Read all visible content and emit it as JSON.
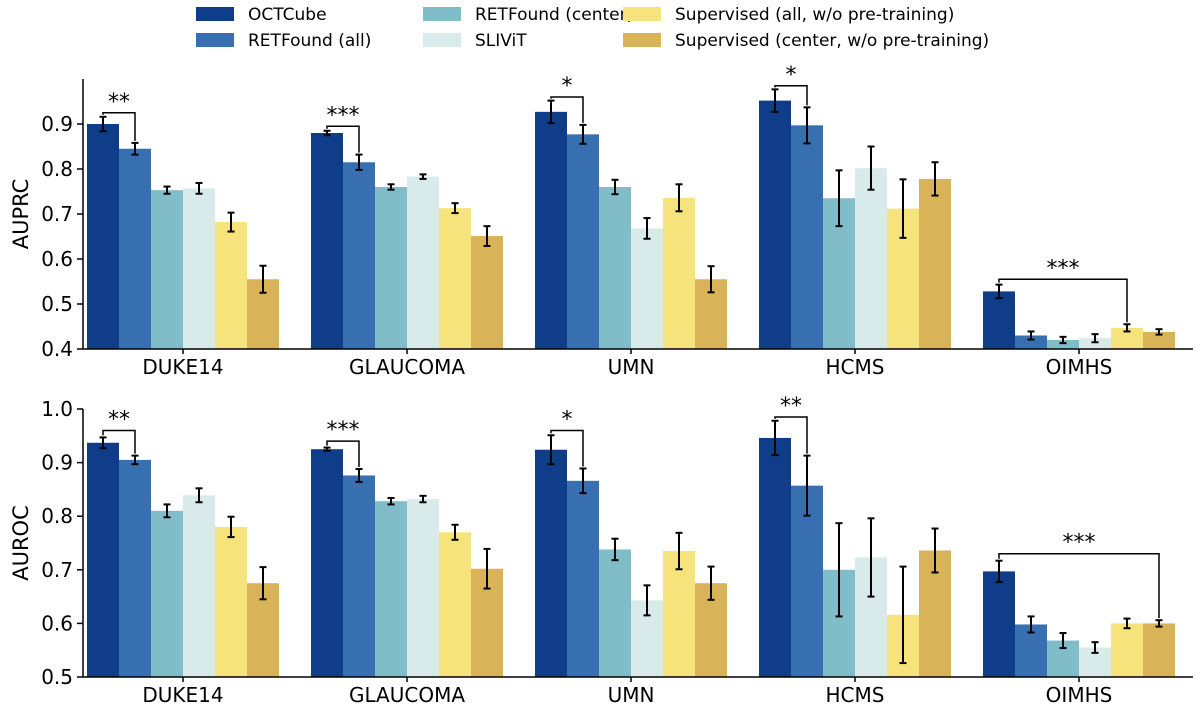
{
  "legend": [
    {
      "name": "OCTCube",
      "color": "#0f3d8a"
    },
    {
      "name": "RETFound (all)",
      "color": "#376fb0"
    },
    {
      "name": "RETFound (center)",
      "color": "#80bdc8"
    },
    {
      "name": "SLIViT",
      "color": "#d8ebea"
    },
    {
      "name": "Supervised (all, w/o pre-training)",
      "color": "#f7e37b"
    },
    {
      "name": "Supervised (center, w/o pre-training)",
      "color": "#d8b357"
    }
  ],
  "chart_data": [
    {
      "type": "bar",
      "categories": [
        "DUKE14",
        "GLAUCOMA",
        "UMN",
        "HCMS",
        "OIMHS"
      ],
      "ylabel": "AUPRC",
      "ylim": [
        0.4,
        1.0
      ],
      "yticks": [
        "0.4",
        "0.5",
        "0.6",
        "0.7",
        "0.8",
        "0.9"
      ],
      "series": [
        {
          "name": "OCTCube",
          "values": [
            0.9,
            0.88,
            0.927,
            0.952,
            0.528
          ],
          "err": [
            0.016,
            0.005,
            0.025,
            0.025,
            0.015
          ]
        },
        {
          "name": "RETFound (all)",
          "values": [
            0.845,
            0.815,
            0.877,
            0.897,
            0.43
          ],
          "err": [
            0.013,
            0.017,
            0.021,
            0.04,
            0.009
          ]
        },
        {
          "name": "RETFound (center)",
          "values": [
            0.753,
            0.76,
            0.76,
            0.735,
            0.42
          ],
          "err": [
            0.008,
            0.006,
            0.016,
            0.062,
            0.007
          ]
        },
        {
          "name": "SLIViT",
          "values": [
            0.757,
            0.783,
            0.668,
            0.802,
            0.424
          ],
          "err": [
            0.012,
            0.005,
            0.023,
            0.048,
            0.009
          ]
        },
        {
          "name": "Supervised (all, w/o pre-training)",
          "values": [
            0.682,
            0.713,
            0.736,
            0.712,
            0.447
          ],
          "err": [
            0.021,
            0.011,
            0.03,
            0.065,
            0.008
          ]
        },
        {
          "name": "Supervised (center, w/o pre-training)",
          "values": [
            0.555,
            0.651,
            0.555,
            0.778,
            0.438
          ],
          "err": [
            0.03,
            0.022,
            0.029,
            0.037,
            0.006
          ]
        }
      ],
      "significance": [
        {
          "category": 0,
          "from": 0,
          "to": 1,
          "label": "**",
          "y": 0.925
        },
        {
          "category": 1,
          "from": 0,
          "to": 1,
          "label": "***",
          "y": 0.895
        },
        {
          "category": 2,
          "from": 0,
          "to": 1,
          "label": "*",
          "y": 0.96
        },
        {
          "category": 3,
          "from": 0,
          "to": 1,
          "label": "*",
          "y": 0.985
        },
        {
          "category": 4,
          "from": 0,
          "to": 4,
          "label": "***",
          "y": 0.555
        }
      ]
    },
    {
      "type": "bar",
      "categories": [
        "DUKE14",
        "GLAUCOMA",
        "UMN",
        "HCMS",
        "OIMHS"
      ],
      "ylabel": "AUROC",
      "ylim": [
        0.5,
        1.0
      ],
      "yticks": [
        "0.5",
        "0.6",
        "0.7",
        "0.8",
        "0.9",
        "1.0"
      ],
      "series": [
        {
          "name": "OCTCube",
          "values": [
            0.937,
            0.925,
            0.924,
            0.946,
            0.697
          ],
          "err": [
            0.01,
            0.003,
            0.027,
            0.032,
            0.02
          ]
        },
        {
          "name": "RETFound (all)",
          "values": [
            0.905,
            0.876,
            0.866,
            0.857,
            0.598
          ],
          "err": [
            0.008,
            0.012,
            0.023,
            0.056,
            0.015
          ]
        },
        {
          "name": "RETFound (center)",
          "values": [
            0.81,
            0.828,
            0.738,
            0.7,
            0.568
          ],
          "err": [
            0.012,
            0.006,
            0.02,
            0.087,
            0.014
          ]
        },
        {
          "name": "SLIViT",
          "values": [
            0.839,
            0.832,
            0.643,
            0.723,
            0.555
          ],
          "err": [
            0.013,
            0.006,
            0.028,
            0.073,
            0.01
          ]
        },
        {
          "name": "Supervised (all, w/o pre-training)",
          "values": [
            0.78,
            0.77,
            0.735,
            0.616,
            0.6
          ],
          "err": [
            0.019,
            0.014,
            0.034,
            0.09,
            0.009
          ]
        },
        {
          "name": "Supervised (center, w/o pre-training)",
          "values": [
            0.675,
            0.702,
            0.675,
            0.736,
            0.6
          ],
          "err": [
            0.03,
            0.037,
            0.031,
            0.041,
            0.006
          ]
        }
      ],
      "significance": [
        {
          "category": 0,
          "from": 0,
          "to": 1,
          "label": "**",
          "y": 0.96
        },
        {
          "category": 1,
          "from": 0,
          "to": 1,
          "label": "***",
          "y": 0.94
        },
        {
          "category": 2,
          "from": 0,
          "to": 1,
          "label": "*",
          "y": 0.96
        },
        {
          "category": 3,
          "from": 0,
          "to": 1,
          "label": "**",
          "y": 0.985
        },
        {
          "category": 4,
          "from": 0,
          "to": 5,
          "label": "***",
          "y": 0.73
        }
      ]
    }
  ]
}
